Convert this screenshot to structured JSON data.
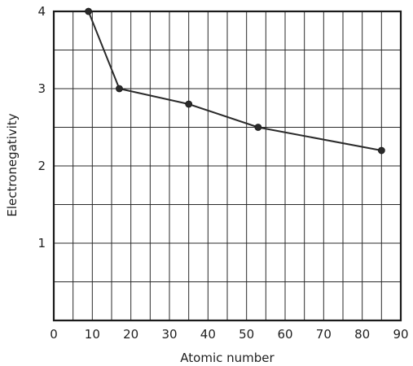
{
  "chart_data": {
    "type": "line",
    "xlabel": "Atomic number",
    "ylabel": "Electronegativity",
    "xlim": [
      0,
      90
    ],
    "ylim": [
      0,
      4
    ],
    "x_ticks": [
      "0",
      "10",
      "20",
      "30",
      "40",
      "50",
      "60",
      "70",
      "80",
      "90"
    ],
    "y_ticks": [
      "1",
      "2",
      "3",
      "4"
    ],
    "x_tick_values": [
      0,
      10,
      20,
      30,
      40,
      50,
      60,
      70,
      80,
      90
    ],
    "y_tick_values": [
      1,
      2,
      3,
      4
    ],
    "x_minor_step": 5,
    "y_minor_step": 0.5,
    "grid": true,
    "series": [
      {
        "x": [
          9,
          17,
          35,
          53,
          85
        ],
        "y": [
          4.0,
          3.0,
          2.8,
          2.5,
          2.2
        ]
      }
    ]
  }
}
